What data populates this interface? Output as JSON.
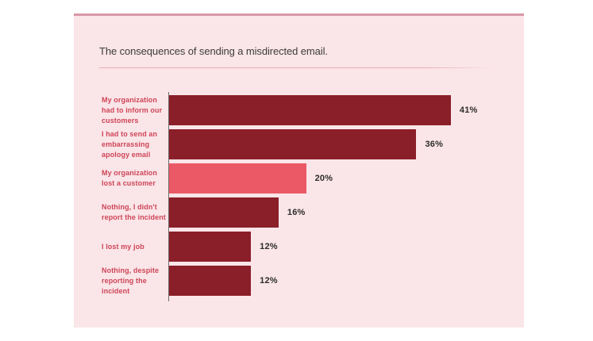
{
  "chart_data": {
    "type": "bar",
    "orientation": "horizontal",
    "title": "The consequences of sending a misdirected email.",
    "categories": [
      "My organization had to inform our customers",
      "I had to send an embarrassing apology email",
      "My organization lost a customer",
      "Nothing, I didn't report the incident",
      "I lost my job",
      "Nothing, despite reporting the incident"
    ],
    "label_lines": [
      "My organization\nhad to inform our\ncustomers",
      "I had to send an\nembarrassing\napology email",
      "My organization\nlost a customer",
      "Nothing, I didn't\nreport the incident",
      "I lost my job",
      "Nothing, despite\nreporting the\nincident"
    ],
    "values": [
      41,
      36,
      20,
      16,
      12,
      12
    ],
    "unit": "%",
    "value_labels": [
      "41%",
      "36%",
      "20%",
      "16%",
      "12%",
      "12%"
    ],
    "xlim": [
      0,
      46
    ],
    "highlighted_index": 2,
    "legend": "none",
    "grid": "off",
    "colors": {
      "bar": "#8A1E29",
      "highlight": "#EA5965",
      "panel_background": "#FAE5E8",
      "page_background": "#FFFFFF",
      "accent_top_line": "#D897A7",
      "title_divider": "#E8ACB6",
      "category_label": "#CE4558",
      "title_text": "#3C3C3C",
      "value_text": "#2D2D2D",
      "axis_line": "#6E6E6E"
    }
  }
}
